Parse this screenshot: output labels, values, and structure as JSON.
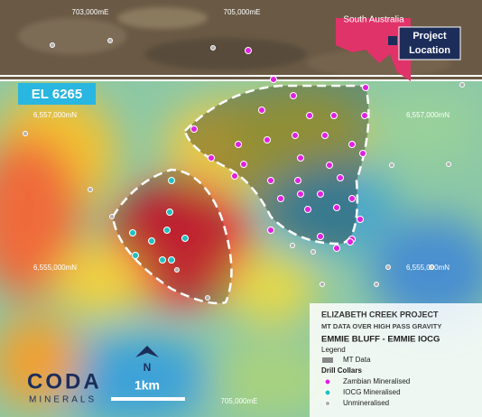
{
  "map": {
    "grid_labels": {
      "top": [
        "703,000mE",
        "705,000mE"
      ],
      "bottom": [
        "705,000mE"
      ],
      "left": [
        "6,557,000mN",
        "6,555,000mN"
      ],
      "right": [
        "6,557,000mN",
        "6,555,000mN"
      ]
    },
    "inset": {
      "region": "South Australia",
      "label": [
        "Project",
        "Location"
      ]
    },
    "tenement": "EL 6265",
    "legend": {
      "title": "ELIZABETH CREEK PROJECT",
      "subtitle": "MT DATA OVER HIGH PASS GRAVITY",
      "heading": "EMMIE BLUFF - EMMIE IOCG",
      "legend_title": "Legend",
      "mt_item": "MT Data",
      "collars_title": "Drill Collars",
      "collars": [
        "Zambian Mineralised",
        "IOCG Mineralised",
        "Unmineralised"
      ]
    },
    "north": "N",
    "scale": "1km",
    "logo": {
      "name": "CODA",
      "tagline": "MINERALS"
    }
  }
}
